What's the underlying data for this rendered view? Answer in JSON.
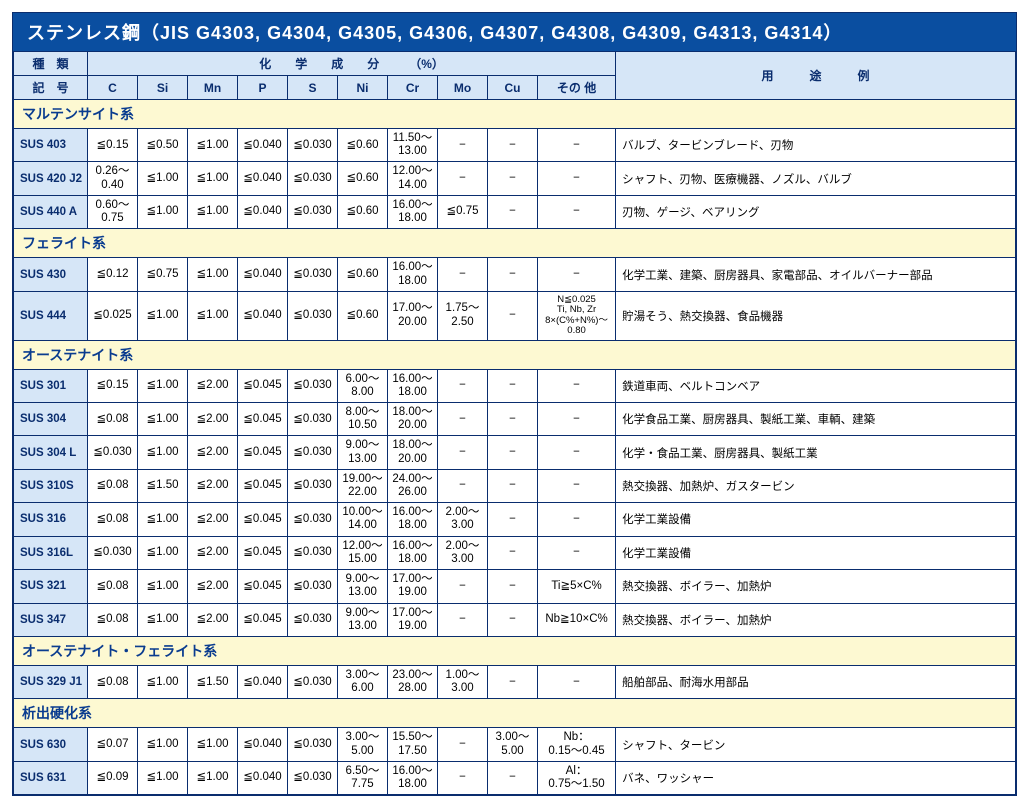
{
  "title": "ステンレス鋼（JIS G4303, G4304, G4305, G4306, G4307, G4308, G4309, G4313, G4314）",
  "header": {
    "type_label": "種　類",
    "symbol_label": "記　号",
    "comp_header": "化　　学　　成　　分　　　（%）",
    "uses_header": "用　　　途　　　例",
    "cols": [
      "C",
      "Si",
      "Mn",
      "P",
      "S",
      "Ni",
      "Cr",
      "Mo",
      "Cu",
      "その 他"
    ]
  },
  "sections": [
    {
      "name": "マルテンサイト系",
      "rows": [
        {
          "grade": "SUS 403",
          "vals": [
            "≦0.15",
            "≦0.50",
            "≦1.00",
            "≦0.040",
            "≦0.030",
            "≦0.60",
            "11.50〜\n13.00",
            "−",
            "−",
            "−"
          ],
          "uses": "バルブ、タービンブレード、刃物"
        },
        {
          "grade": "SUS 420 J2",
          "vals": [
            "0.26〜\n0.40",
            "≦1.00",
            "≦1.00",
            "≦0.040",
            "≦0.030",
            "≦0.60",
            "12.00〜\n14.00",
            "−",
            "−",
            "−"
          ],
          "uses": "シャフト、刃物、医療機器、ノズル、バルブ"
        },
        {
          "grade": "SUS 440 A",
          "vals": [
            "0.60〜\n0.75",
            "≦1.00",
            "≦1.00",
            "≦0.040",
            "≦0.030",
            "≦0.60",
            "16.00〜\n18.00",
            "≦0.75",
            "−",
            "−"
          ],
          "uses": "刃物、ゲージ、ベアリング"
        }
      ]
    },
    {
      "name": "フェライト系",
      "rows": [
        {
          "grade": "SUS 430",
          "vals": [
            "≦0.12",
            "≦0.75",
            "≦1.00",
            "≦0.040",
            "≦0.030",
            "≦0.60",
            "16.00〜\n18.00",
            "−",
            "−",
            "−"
          ],
          "uses": "化学工業、建築、厨房器具、家電部品、オイルバーナー部品"
        },
        {
          "grade": "SUS 444",
          "vals": [
            "≦0.025",
            "≦1.00",
            "≦1.00",
            "≦0.040",
            "≦0.030",
            "≦0.60",
            "17.00〜\n20.00",
            "1.75〜\n2.50",
            "−",
            "N≦0.025\nTi, Nb, Zr\n8×(C%+N%)〜0.80"
          ],
          "other_small": true,
          "uses": "貯湯そう、熱交換器、食品機器"
        }
      ]
    },
    {
      "name": "オーステナイト系",
      "rows": [
        {
          "grade": "SUS 301",
          "vals": [
            "≦0.15",
            "≦1.00",
            "≦2.00",
            "≦0.045",
            "≦0.030",
            "6.00〜\n8.00",
            "16.00〜\n18.00",
            "−",
            "−",
            "−"
          ],
          "uses": "鉄道車両、ベルトコンベア"
        },
        {
          "grade": "SUS 304",
          "vals": [
            "≦0.08",
            "≦1.00",
            "≦2.00",
            "≦0.045",
            "≦0.030",
            "8.00〜\n10.50",
            "18.00〜\n20.00",
            "−",
            "−",
            "−"
          ],
          "uses": "化学食品工業、厨房器具、製紙工業、車輌、建築"
        },
        {
          "grade": "SUS 304 L",
          "vals": [
            "≦0.030",
            "≦1.00",
            "≦2.00",
            "≦0.045",
            "≦0.030",
            "9.00〜\n13.00",
            "18.00〜\n20.00",
            "−",
            "−",
            "−"
          ],
          "uses": "化学・食品工業、厨房器具、製紙工業"
        },
        {
          "grade": "SUS 310S",
          "vals": [
            "≦0.08",
            "≦1.50",
            "≦2.00",
            "≦0.045",
            "≦0.030",
            "19.00〜\n22.00",
            "24.00〜\n26.00",
            "−",
            "−",
            "−"
          ],
          "uses": "熱交換器、加熱炉、ガスタービン"
        },
        {
          "grade": "SUS 316",
          "vals": [
            "≦0.08",
            "≦1.00",
            "≦2.00",
            "≦0.045",
            "≦0.030",
            "10.00〜\n14.00",
            "16.00〜\n18.00",
            "2.00〜\n3.00",
            "−",
            "−"
          ],
          "uses": "化学工業設備"
        },
        {
          "grade": "SUS 316L",
          "vals": [
            "≦0.030",
            "≦1.00",
            "≦2.00",
            "≦0.045",
            "≦0.030",
            "12.00〜\n15.00",
            "16.00〜\n18.00",
            "2.00〜\n3.00",
            "−",
            "−"
          ],
          "uses": "化学工業設備"
        },
        {
          "grade": "SUS 321",
          "vals": [
            "≦0.08",
            "≦1.00",
            "≦2.00",
            "≦0.045",
            "≦0.030",
            "9.00〜\n13.00",
            "17.00〜\n19.00",
            "−",
            "−",
            "Ti≧5×C%"
          ],
          "uses": "熱交換器、ボイラー、加熱炉"
        },
        {
          "grade": "SUS 347",
          "vals": [
            "≦0.08",
            "≦1.00",
            "≦2.00",
            "≦0.045",
            "≦0.030",
            "9.00〜\n13.00",
            "17.00〜\n19.00",
            "−",
            "−",
            "Nb≧10×C%"
          ],
          "uses": "熱交換器、ボイラー、加熱炉"
        }
      ]
    },
    {
      "name": "オーステナイト・フェライト系",
      "rows": [
        {
          "grade": "SUS 329 J1",
          "vals": [
            "≦0.08",
            "≦1.00",
            "≦1.50",
            "≦0.040",
            "≦0.030",
            "3.00〜\n6.00",
            "23.00〜\n28.00",
            "1.00〜\n3.00",
            "−",
            "−"
          ],
          "uses": "船舶部品、耐海水用部品"
        }
      ]
    },
    {
      "name": "析出硬化系",
      "rows": [
        {
          "grade": "SUS 630",
          "vals": [
            "≦0.07",
            "≦1.00",
            "≦1.00",
            "≦0.040",
            "≦0.030",
            "3.00〜\n5.00",
            "15.50〜\n17.50",
            "−",
            "3.00〜\n5.00",
            "Nb：\n0.15〜0.45"
          ],
          "uses": "シャフト、タービン"
        },
        {
          "grade": "SUS 631",
          "vals": [
            "≦0.09",
            "≦1.00",
            "≦1.00",
            "≦0.040",
            "≦0.030",
            "6.50〜\n7.75",
            "16.00〜\n18.00",
            "−",
            "−",
            "Al：\n0.75〜1.50"
          ],
          "uses": "バネ、ワッシャー"
        }
      ]
    }
  ],
  "colors": {
    "title_bg": "#0a4ea0",
    "title_fg": "#ffffff",
    "header_bg": "#d6e6f7",
    "header_fg": "#0a2d6e",
    "section_bg": "#fdf9d2",
    "section_fg": "#0a3c8f",
    "border": "#0a2d6e"
  }
}
